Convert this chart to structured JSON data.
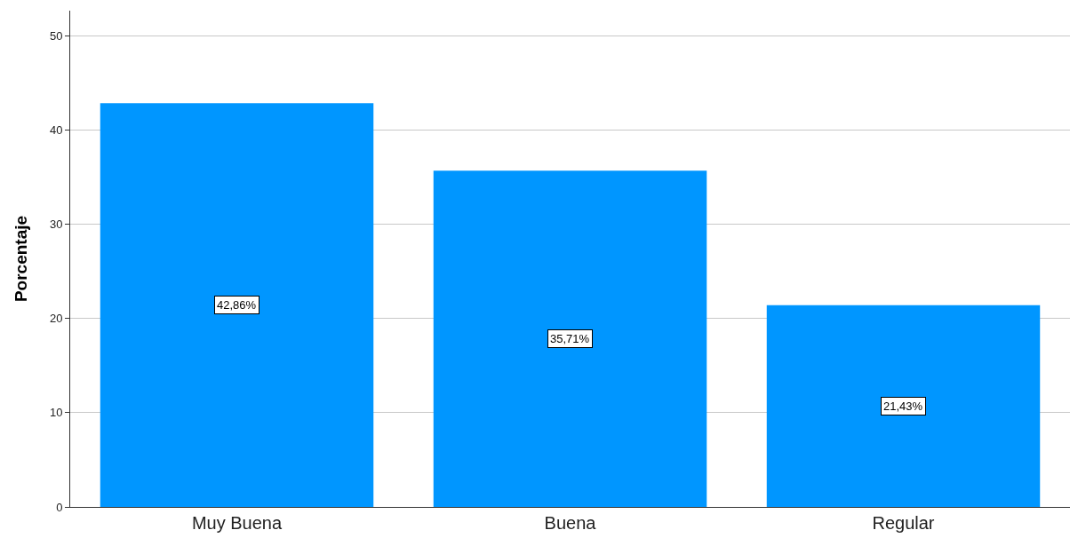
{
  "chart_data": {
    "type": "bar",
    "ylabel": "Porcentaje",
    "categories": [
      "Muy Buena",
      "Buena",
      "Regular"
    ],
    "values": [
      42.86,
      35.71,
      21.43
    ],
    "value_labels": [
      "42,86%",
      "35,71%",
      "21,43%"
    ],
    "color": "#0096ff",
    "ylim": [
      0,
      52.7
    ],
    "yticks": [
      0,
      10,
      20,
      30,
      40,
      50
    ],
    "grid": "y",
    "legend": false
  }
}
